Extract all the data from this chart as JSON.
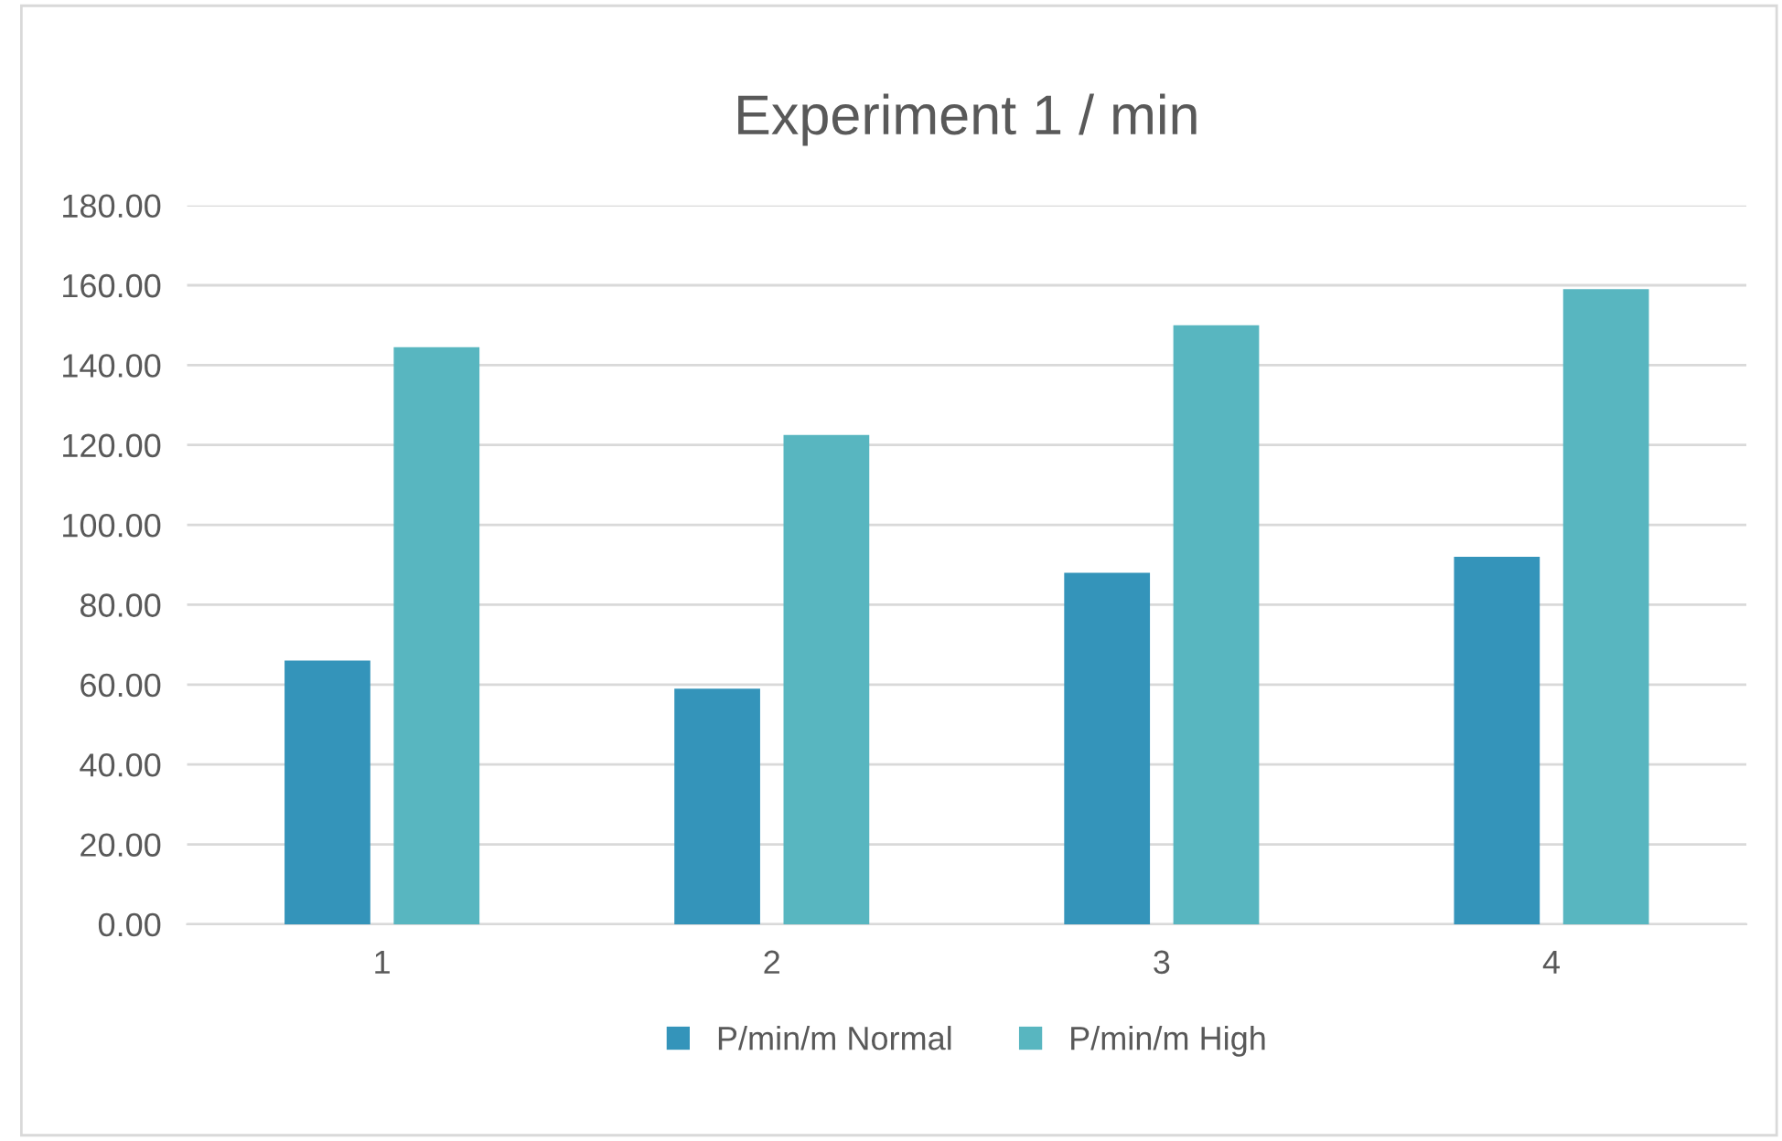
{
  "chart_data": {
    "type": "bar",
    "title": "Experiment 1 / min",
    "categories": [
      "1",
      "2",
      "3",
      "4"
    ],
    "series": [
      {
        "name": "P/min/m Normal",
        "color": "#3494ba",
        "values": [
          66,
          59,
          88,
          92
        ]
      },
      {
        "name": "P/min/m High",
        "color": "#58b6c0",
        "values": [
          144.5,
          122.5,
          150,
          159
        ]
      }
    ],
    "ylim": [
      0,
      180
    ],
    "yticks": [
      {
        "value": 0,
        "label": "0.00"
      },
      {
        "value": 20,
        "label": "20.00"
      },
      {
        "value": 40,
        "label": "40.00"
      },
      {
        "value": 60,
        "label": "60.00"
      },
      {
        "value": 80,
        "label": "80.00"
      },
      {
        "value": 100,
        "label": "100.00"
      },
      {
        "value": 120,
        "label": "120.00"
      },
      {
        "value": 140,
        "label": "140.00"
      },
      {
        "value": 160,
        "label": "160.00"
      },
      {
        "value": 180,
        "label": "180.00"
      }
    ],
    "grid": "y",
    "legend": "bottom"
  }
}
